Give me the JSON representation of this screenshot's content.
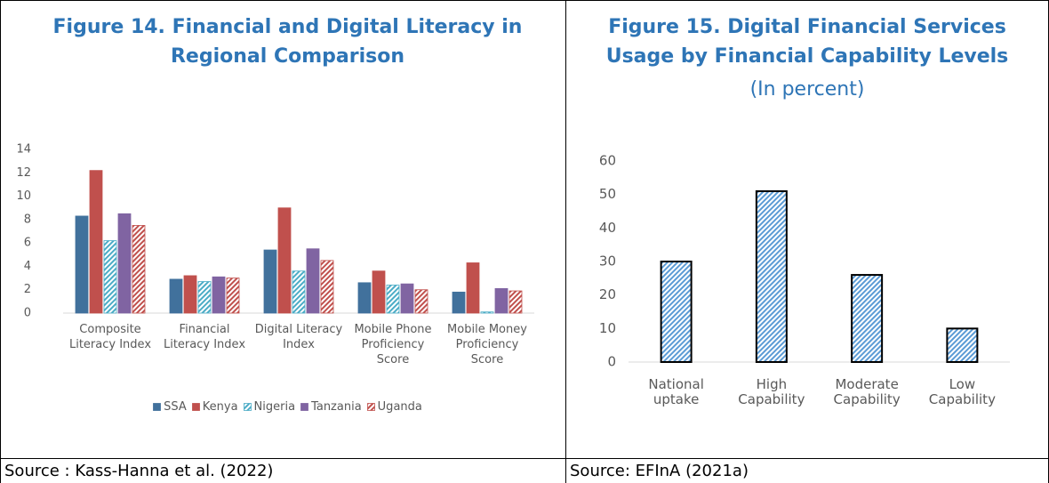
{
  "chart_data": [
    {
      "type": "bar",
      "title": "Figure 14. Financial and Digital Literacy in Regional Comparison",
      "categories": [
        "Composite Literacy Index",
        "Financial Literacy Index",
        "Digital Literacy Index",
        "Mobile Phone Proficiency Score",
        "Mobile Money Proficiency Score"
      ],
      "series": [
        {
          "name": "SSA",
          "color": "#41719c",
          "hatch": false,
          "values": [
            8.3,
            2.9,
            5.4,
            2.6,
            1.8
          ]
        },
        {
          "name": "Kenya",
          "color": "#c0504d",
          "hatch": false,
          "values": [
            12.2,
            3.2,
            9.0,
            3.6,
            4.3
          ]
        },
        {
          "name": "Nigeria",
          "color": "#4bacc6",
          "hatch": true,
          "values": [
            6.2,
            2.7,
            3.6,
            2.4,
            0.1
          ]
        },
        {
          "name": "Tanzania",
          "color": "#8064a2",
          "hatch": false,
          "values": [
            8.5,
            3.1,
            5.5,
            2.5,
            2.1
          ]
        },
        {
          "name": "Uganda",
          "color": "#c0504d",
          "hatch": true,
          "values": [
            7.5,
            3.0,
            4.5,
            2.0,
            1.9
          ]
        }
      ],
      "ylim": [
        0,
        14
      ],
      "yticks": [
        0,
        2,
        4,
        6,
        8,
        10,
        12,
        14
      ],
      "legend": "bottom",
      "source": "Source : Kass-Hanna et al. (2022)"
    },
    {
      "type": "bar",
      "title": "Figure 15. Digital Financial Services Usage by Financial Capability Levels",
      "subtitle": "(In percent)",
      "categories": [
        "National uptake",
        "High Capability",
        "Moderate Capability",
        "Low Capability"
      ],
      "series": [
        {
          "name": null,
          "color": "#5b9bd5",
          "hatch": true,
          "values": [
            30,
            51,
            26,
            10
          ]
        }
      ],
      "ylim": [
        0,
        60
      ],
      "yticks": [
        0,
        10,
        20,
        30,
        40,
        50,
        60
      ],
      "source": "Source: EFInA (2021a)"
    }
  ]
}
